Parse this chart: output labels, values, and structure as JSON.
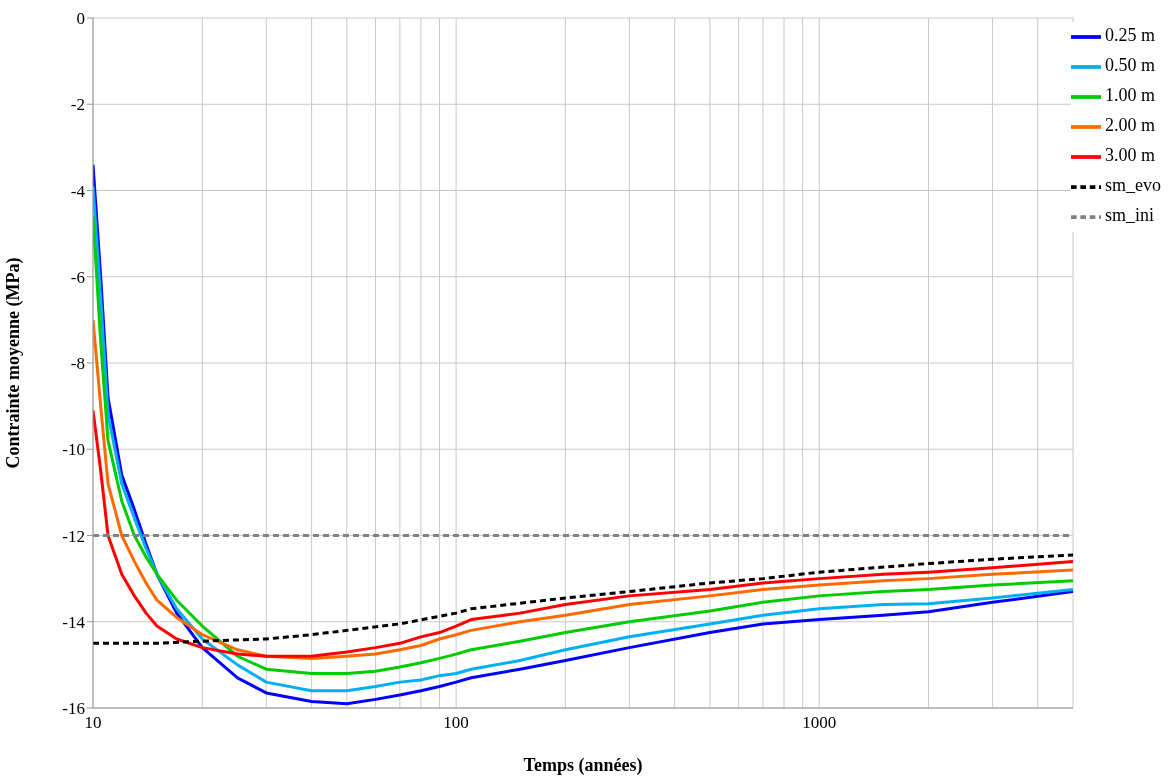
{
  "chart_data": {
    "type": "line",
    "xlabel": "Temps (années)",
    "ylabel": "Contrainte moyenne (MPa)",
    "log": "x",
    "xlim": [
      10,
      5000
    ],
    "xticks": [
      10,
      100,
      1000
    ],
    "ylim": [
      -16,
      0
    ],
    "yticks": [
      -16,
      -14,
      -12,
      -10,
      -8,
      -6,
      -4,
      -2,
      0
    ],
    "grid": true,
    "legend": "top right",
    "marker": "none",
    "series": [
      {
        "name": "0.25 m",
        "color": "#0000ff",
        "line_style": "solid",
        "x": [
          10,
          10.5,
          11,
          12,
          13,
          14,
          15,
          17,
          20,
          25,
          30,
          40,
          50,
          60,
          70,
          80,
          90,
          100,
          110,
          150,
          200,
          300,
          500,
          700,
          1000,
          1500,
          2000,
          3000,
          5000
        ],
        "values": [
          -3.4,
          -6,
          -8.8,
          -10.6,
          -11.4,
          -12.2,
          -12.9,
          -13.8,
          -14.6,
          -15.3,
          -15.65,
          -15.85,
          -15.9,
          -15.8,
          -15.7,
          -15.6,
          -15.5,
          -15.4,
          -15.3,
          -15.1,
          -14.9,
          -14.6,
          -14.25,
          -14.05,
          -13.95,
          -13.85,
          -13.77,
          -13.55,
          -13.3
        ]
      },
      {
        "name": "0.50 m",
        "color": "#00b0f0",
        "line_style": "solid",
        "x": [
          10,
          10.5,
          11,
          12,
          13,
          14,
          15,
          17,
          20,
          25,
          30,
          40,
          50,
          60,
          70,
          80,
          90,
          100,
          110,
          150,
          200,
          300,
          500,
          700,
          1000,
          1500,
          2000,
          3000,
          5000
        ],
        "values": [
          -3.9,
          -6.5,
          -9.2,
          -10.8,
          -11.6,
          -12.3,
          -12.9,
          -13.7,
          -14.4,
          -15,
          -15.4,
          -15.6,
          -15.6,
          -15.5,
          -15.4,
          -15.35,
          -15.25,
          -15.2,
          -15.1,
          -14.9,
          -14.65,
          -14.35,
          -14.05,
          -13.85,
          -13.7,
          -13.6,
          -13.58,
          -13.45,
          -13.25
        ]
      },
      {
        "name": "1.00 m",
        "color": "#00cc00",
        "line_style": "solid",
        "x": [
          10,
          10.5,
          11,
          12,
          13,
          14,
          15,
          17,
          20,
          25,
          30,
          40,
          50,
          60,
          70,
          80,
          90,
          100,
          110,
          150,
          200,
          300,
          500,
          700,
          1000,
          1500,
          2000,
          3000,
          5000
        ],
        "values": [
          -4.6,
          -7.5,
          -9.8,
          -11.2,
          -12,
          -12.5,
          -12.9,
          -13.5,
          -14.1,
          -14.8,
          -15.1,
          -15.2,
          -15.2,
          -15.15,
          -15.05,
          -14.95,
          -14.85,
          -14.75,
          -14.65,
          -14.45,
          -14.25,
          -14,
          -13.75,
          -13.55,
          -13.4,
          -13.3,
          -13.25,
          -13.15,
          -13.05
        ]
      },
      {
        "name": "2.00 m",
        "color": "#ff6a00",
        "line_style": "solid",
        "x": [
          10,
          10.5,
          11,
          12,
          13,
          14,
          15,
          17,
          20,
          25,
          30,
          40,
          50,
          60,
          70,
          80,
          90,
          100,
          110,
          150,
          200,
          300,
          500,
          700,
          1000,
          1500,
          2000,
          3000,
          5000
        ],
        "values": [
          -7,
          -9,
          -10.8,
          -12,
          -12.6,
          -13.1,
          -13.5,
          -13.9,
          -14.3,
          -14.65,
          -14.8,
          -14.85,
          -14.8,
          -14.75,
          -14.65,
          -14.55,
          -14.4,
          -14.3,
          -14.2,
          -14,
          -13.85,
          -13.6,
          -13.4,
          -13.25,
          -13.15,
          -13.05,
          -13,
          -12.9,
          -12.8
        ]
      },
      {
        "name": "3.00 m",
        "color": "#ff0000",
        "line_style": "solid",
        "x": [
          10,
          10.5,
          11,
          12,
          13,
          14,
          15,
          17,
          20,
          25,
          30,
          40,
          50,
          60,
          70,
          80,
          90,
          100,
          110,
          150,
          200,
          300,
          500,
          700,
          1000,
          1500,
          2000,
          3000,
          5000
        ],
        "values": [
          -9.1,
          -10.5,
          -12,
          -12.9,
          -13.4,
          -13.8,
          -14.1,
          -14.4,
          -14.6,
          -14.75,
          -14.8,
          -14.8,
          -14.7,
          -14.6,
          -14.5,
          -14.35,
          -14.25,
          -14.1,
          -13.95,
          -13.8,
          -13.6,
          -13.4,
          -13.25,
          -13.1,
          -13,
          -12.9,
          -12.85,
          -12.75,
          -12.6
        ]
      },
      {
        "name": "sm_ini",
        "color": "#808080",
        "line_style": "dashed",
        "x": [
          10,
          5000
        ],
        "values": [
          -12,
          -12
        ]
      },
      {
        "name": "sm_evo",
        "color": "#000000",
        "line_style": "dashed",
        "x": [
          10,
          15,
          20,
          30,
          40,
          50,
          70,
          100,
          110,
          200,
          300,
          500,
          700,
          1000,
          2000,
          3000,
          5000
        ],
        "values": [
          -14.5,
          -14.5,
          -14.45,
          -14.4,
          -14.3,
          -14.2,
          -14.05,
          -13.8,
          -13.7,
          -13.45,
          -13.3,
          -13.1,
          -13,
          -12.85,
          -12.65,
          -12.55,
          -12.45
        ]
      }
    ]
  }
}
